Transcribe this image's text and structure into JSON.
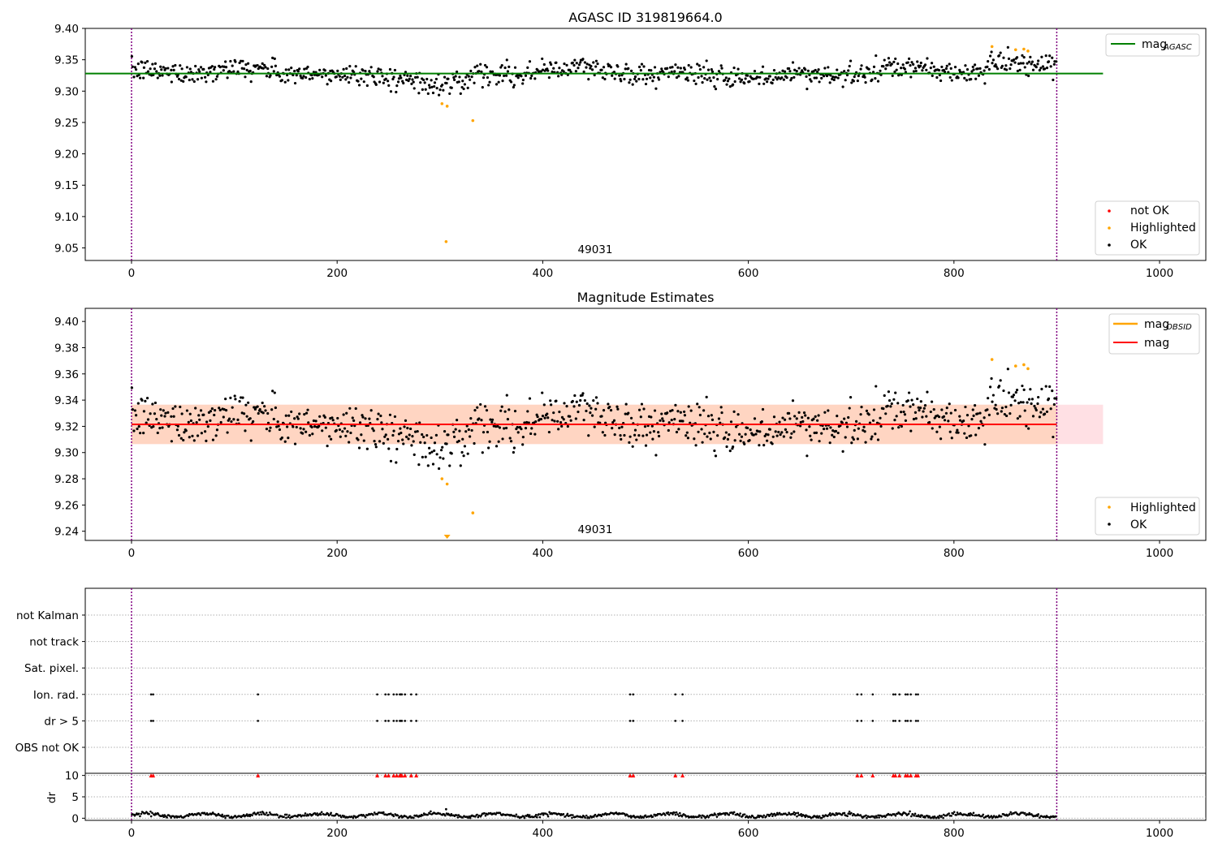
{
  "colors": {
    "ok": "#000000",
    "highlighted": "#ffa500",
    "not_ok": "#ff0000",
    "agasc_line": "#008000",
    "mag_line": "#ff0000",
    "mag_obsid": "#ffa500",
    "band_outer": "#ffe0e4",
    "band_inner": "#ffd5c2",
    "vline": "#800080",
    "grid": "#b0b0b0"
  },
  "chart_data": [
    {
      "type": "scatter",
      "title": "AGASC ID 319819664.0",
      "annotation": "49031",
      "xlim": [
        -45,
        1045
      ],
      "ylim": [
        9.03,
        9.4
      ],
      "xticks": [
        "0",
        "200",
        "400",
        "600",
        "800",
        "1000"
      ],
      "xtick_values": [
        0,
        200,
        400,
        600,
        800,
        1000
      ],
      "yticks": [
        "9.05",
        "9.10",
        "9.15",
        "9.20",
        "9.25",
        "9.30",
        "9.35",
        "9.40"
      ],
      "ytick_values": [
        9.05,
        9.1,
        9.15,
        9.2,
        9.25,
        9.3,
        9.35,
        9.4
      ],
      "agasc_mag": 9.328,
      "agasc_line_x": [
        -45,
        945
      ],
      "obs_bounds": [
        0,
        900
      ],
      "ok_series": {
        "n": 900,
        "base": 9.322,
        "noise": 0.012
      },
      "highlighted_points": [
        [
          302,
          9.28
        ],
        [
          307,
          9.276
        ],
        [
          332,
          9.253
        ],
        [
          306,
          9.06
        ],
        [
          837,
          9.371
        ],
        [
          860,
          9.366
        ],
        [
          868,
          9.367
        ],
        [
          872,
          9.364
        ]
      ],
      "legend_line": {
        "label": "mag",
        "subscript": "AGASC"
      },
      "legend_points": [
        "not OK",
        "Highlighted",
        "OK"
      ]
    },
    {
      "type": "scatter",
      "title": "Magnitude Estimates",
      "annotation": "49031",
      "xlim": [
        -45,
        1045
      ],
      "ylim": [
        9.233,
        9.41
      ],
      "xticks": [
        "0",
        "200",
        "400",
        "600",
        "800",
        "1000"
      ],
      "xtick_values": [
        0,
        200,
        400,
        600,
        800,
        1000
      ],
      "yticks": [
        "9.24",
        "9.26",
        "9.28",
        "9.30",
        "9.32",
        "9.34",
        "9.36",
        "9.38",
        "9.40"
      ],
      "ytick_values": [
        9.24,
        9.26,
        9.28,
        9.3,
        9.32,
        9.34,
        9.36,
        9.38,
        9.4
      ],
      "mag": 9.3215,
      "mag_band": [
        9.3065,
        9.3365
      ],
      "mag_band_x": [
        0,
        945
      ],
      "mag_obsid": 9.3215,
      "mag_obsid_band": [
        9.3065,
        9.3365
      ],
      "mag_obsid_band_x": [
        0,
        900
      ],
      "highlighted_points": [
        [
          302,
          9.28
        ],
        [
          307,
          9.276
        ],
        [
          332,
          9.254
        ],
        [
          837,
          9.371
        ],
        [
          860,
          9.366
        ],
        [
          868,
          9.367
        ],
        [
          872,
          9.364
        ]
      ],
      "offscale_marker_x": 307,
      "legend_lines": [
        {
          "label": "mag",
          "subscript": "OBSID"
        },
        {
          "label": "mag",
          "subscript": ""
        }
      ],
      "legend_points": [
        "Highlighted",
        "OK"
      ]
    },
    {
      "type": "scatter",
      "xlim": [
        -45,
        1045
      ],
      "categories": [
        "OBS not OK",
        "dr > 5",
        "Ion. rad.",
        "Sat. pixel.",
        "not track",
        "not Kalman"
      ],
      "flag_x": [
        19,
        21,
        123,
        239,
        247,
        250,
        255,
        258,
        261,
        262,
        263,
        266,
        272,
        277,
        485,
        488,
        529,
        536,
        706,
        710,
        721,
        741,
        743,
        747,
        753,
        755,
        758,
        763,
        765
      ],
      "flag_rows": [
        "dr > 5",
        "Ion. rad."
      ]
    },
    {
      "type": "scatter",
      "xlim": [
        -45,
        1045
      ],
      "ylim": [
        -0.5,
        10.5
      ],
      "ylabel": "dr",
      "xticks": [
        "0",
        "200",
        "400",
        "600",
        "800",
        "1000"
      ],
      "xtick_values": [
        0,
        200,
        400,
        600,
        800,
        1000
      ],
      "yticks": [
        "0",
        "5",
        "10"
      ],
      "ytick_values": [
        0,
        5,
        10
      ],
      "clipped_value": 10,
      "clipped_x": [
        19,
        21,
        123,
        239,
        247,
        250,
        255,
        258,
        261,
        262,
        263,
        266,
        272,
        277,
        485,
        488,
        529,
        536,
        706,
        710,
        721,
        741,
        743,
        747,
        753,
        755,
        758,
        763,
        765
      ],
      "dr_series": {
        "n": 900,
        "typical_range": [
          0.1,
          1.5
        ]
      },
      "dr_points": [
        [
          306,
          2.1
        ]
      ]
    }
  ]
}
